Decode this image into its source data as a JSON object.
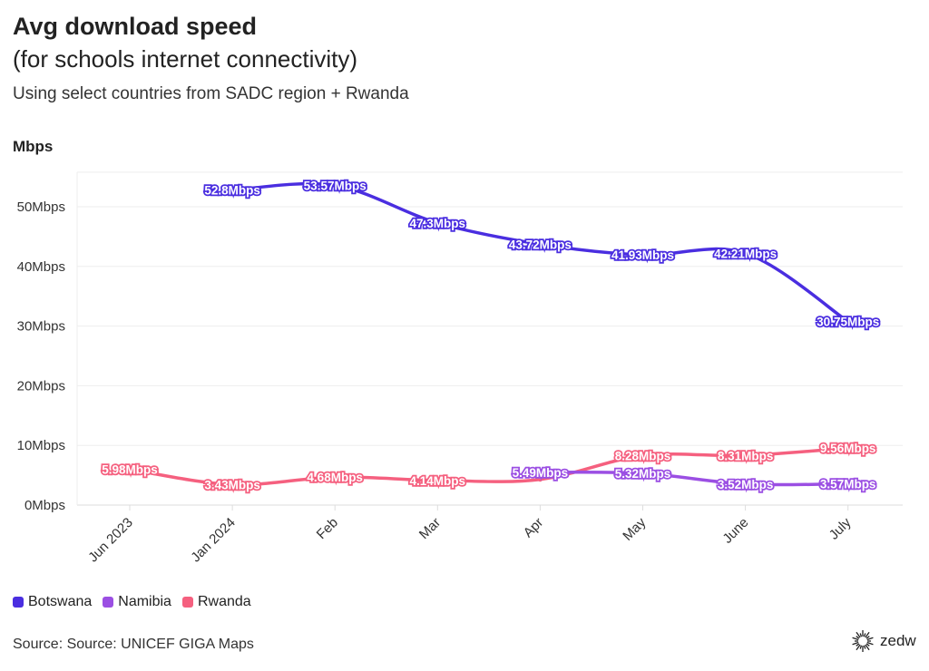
{
  "title": "Avg download speed",
  "title_line2": "(for schools internet connectivity)",
  "subtitle": "Using select countries from SADC region + Rwanda",
  "source": "Source: Source: UNICEF GIGA Maps",
  "logo_text": "zedw",
  "chart_data": {
    "type": "line",
    "ylabel": "Mbps",
    "ylim": [
      0,
      55
    ],
    "yticks": [
      0,
      10,
      20,
      30,
      40,
      50
    ],
    "ytick_labels": [
      "0Mbps",
      "10Mbps",
      "20Mbps",
      "30Mbps",
      "40Mbps",
      "50Mbps"
    ],
    "categories": [
      "Jun 2023",
      "Jan 2024",
      "Feb",
      "Mar",
      "Apr",
      "May",
      "June",
      "July"
    ],
    "grid": true,
    "legend_position": "bottom-left",
    "series": [
      {
        "name": "Botswana",
        "color": "#4a2ee0",
        "values": [
          null,
          52.8,
          53.57,
          47.3,
          43.72,
          41.93,
          42.21,
          30.75
        ],
        "labels": [
          null,
          "52.8Mbps",
          "53.57Mbps",
          "47.3Mbps",
          "43.72Mbps",
          "41.93Mbps",
          "42.21Mbps",
          "30.75Mbps"
        ]
      },
      {
        "name": "Namibia",
        "color": "#9b4fe3",
        "values": [
          null,
          null,
          null,
          null,
          5.49,
          5.32,
          3.52,
          3.57
        ],
        "labels": [
          null,
          null,
          null,
          null,
          "5.49Mbps",
          "5.32Mbps",
          "3.52Mbps",
          "3.57Mbps"
        ]
      },
      {
        "name": "Rwanda",
        "color": "#f5607f",
        "values": [
          5.98,
          3.43,
          4.68,
          4.14,
          4.3,
          8.28,
          8.31,
          9.56
        ],
        "labels": [
          "5.98Mbps",
          "3.43Mbps",
          "4.68Mbps",
          "4.14Mbps",
          null,
          "8.28Mbps",
          "8.31Mbps",
          "9.56Mbps"
        ]
      }
    ]
  }
}
